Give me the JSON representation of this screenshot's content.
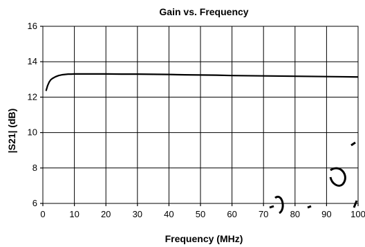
{
  "chart_data": {
    "type": "line",
    "title": "Gain vs. Frequency",
    "xlabel": "Frequency (MHz)",
    "ylabel": "|S21| (dB)",
    "xlim": [
      0,
      100
    ],
    "ylim": [
      6,
      16
    ],
    "xticks": [
      "0",
      "10",
      "20",
      "30",
      "40",
      "50",
      "60",
      "70",
      "80",
      "90",
      "100"
    ],
    "yticks": [
      "6",
      "8",
      "10",
      "12",
      "14",
      "16"
    ],
    "grid": true,
    "legend": "none",
    "series": [
      {
        "color": "#000000",
        "x": [
          1,
          1.5,
          2,
          2.5,
          3,
          4,
          5,
          6,
          7,
          8,
          9,
          10,
          12,
          15,
          18,
          20,
          25,
          30,
          35,
          40,
          45,
          50,
          55,
          60,
          65,
          70,
          75,
          80,
          85,
          90,
          95,
          100
        ],
        "y": [
          12.35,
          12.65,
          12.85,
          12.98,
          13.05,
          13.15,
          13.22,
          13.26,
          13.28,
          13.3,
          13.3,
          13.31,
          13.31,
          13.31,
          13.31,
          13.31,
          13.3,
          13.3,
          13.29,
          13.28,
          13.26,
          13.25,
          13.24,
          13.22,
          13.21,
          13.2,
          13.19,
          13.18,
          13.17,
          13.16,
          13.15,
          13.14
        ]
      }
    ]
  }
}
